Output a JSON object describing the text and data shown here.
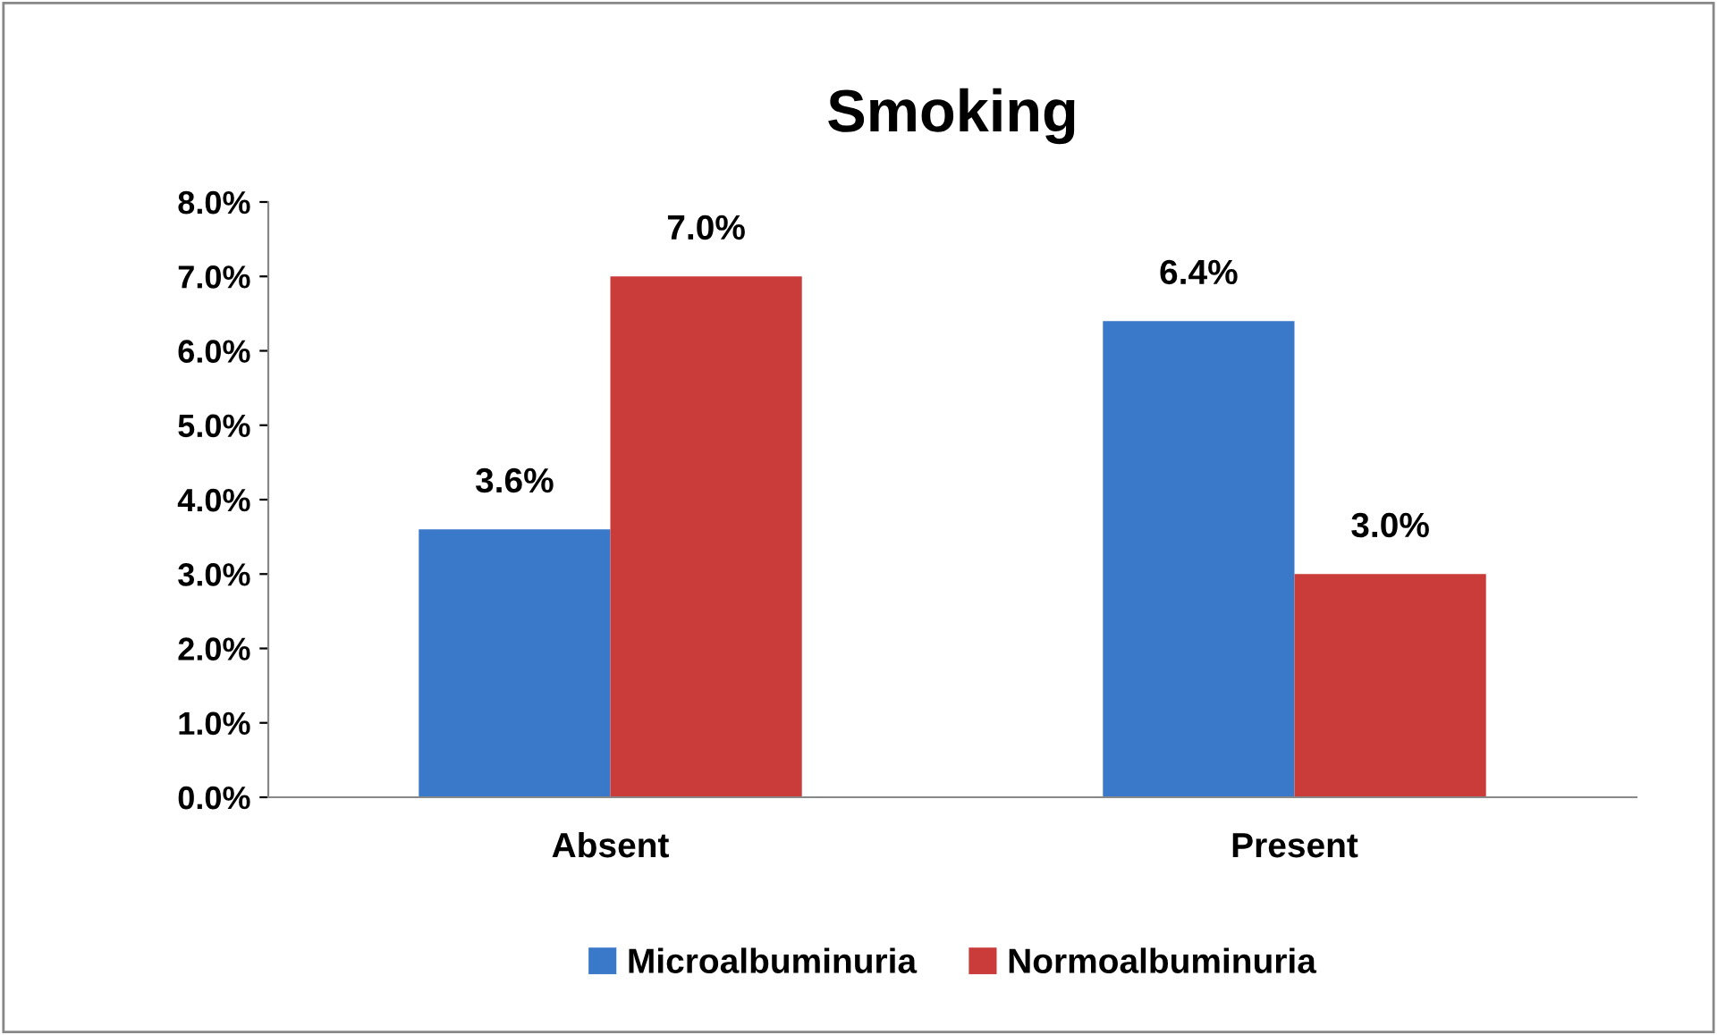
{
  "chart_data": {
    "type": "bar",
    "title": "Smoking",
    "categories": [
      "Absent",
      "Present"
    ],
    "series": [
      {
        "name": "Microalbuminuria",
        "color": "#3a78c9",
        "values": [
          3.6,
          6.4
        ],
        "value_labels": [
          "3.6%",
          "6.4%"
        ]
      },
      {
        "name": "Normoalbuminuria",
        "color": "#c93c3a",
        "values": [
          7.0,
          3.0
        ],
        "value_labels": [
          "7.0%",
          "3.0%"
        ]
      }
    ],
    "ylim": [
      0,
      8
    ],
    "yticks": [
      {
        "value": 0,
        "label": "0.0%"
      },
      {
        "value": 1,
        "label": "1.0%"
      },
      {
        "value": 2,
        "label": "2.0%"
      },
      {
        "value": 3,
        "label": "3.0%"
      },
      {
        "value": 4,
        "label": "4.0%"
      },
      {
        "value": 5,
        "label": "5.0%"
      },
      {
        "value": 6,
        "label": "6.0%"
      },
      {
        "value": 7,
        "label": "7.0%"
      },
      {
        "value": 8,
        "label": "8.0%"
      }
    ],
    "grid": false,
    "legend": "bottom"
  }
}
